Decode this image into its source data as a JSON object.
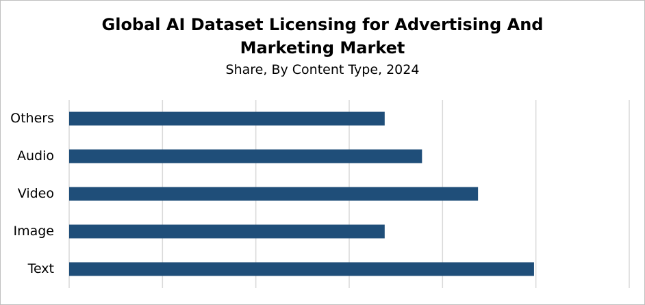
{
  "chart_data": {
    "type": "hbar",
    "title": "Global AI Dataset Licensing for Advertising And Marketing Market",
    "subtitle": "Share, By Content Type, 2024",
    "categories": [
      "Text",
      "Image",
      "Video",
      "Audio",
      "Others"
    ],
    "values": [
      24.9,
      16.9,
      21.9,
      18.9,
      16.9
    ],
    "color": "#1f4e79",
    "xlim": [
      0,
      30
    ],
    "xticks": [
      0,
      5,
      10,
      15,
      20,
      25,
      30
    ],
    "grid": true
  }
}
